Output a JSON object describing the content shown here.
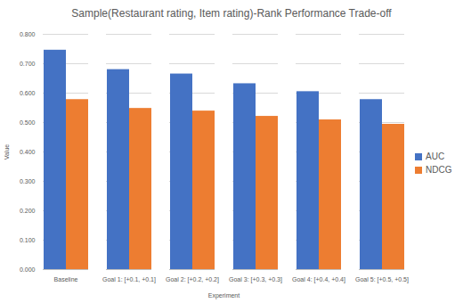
{
  "chart_data": {
    "type": "bar",
    "title": "Sample(Restaurant rating, Item rating)-Rank Performance Trade-off",
    "x_label": "Experiment",
    "y_label": "Value",
    "categories": [
      "Baseline",
      "Goal 1: [+0.1, +0.1]",
      "Goal 2: [+0.2, +0.2]",
      "Goal 3: [+0.3, +0.3]",
      "Goal 4: [+0.4, +0.4]",
      "Goal 5: [+0.5, +0.5]"
    ],
    "series": [
      {
        "name": "AUC",
        "color": "#4472c4",
        "values": [
          0.746,
          0.68,
          0.665,
          0.632,
          0.605,
          0.578
        ]
      },
      {
        "name": "NDCG",
        "color": "#ed7d31",
        "values": [
          0.578,
          0.548,
          0.539,
          0.521,
          0.509,
          0.494
        ]
      }
    ],
    "ylim": [
      0,
      0.8
    ],
    "yticks": [
      {
        "value": 0,
        "label": "0.000"
      },
      {
        "value": 0.1,
        "label": "0.100"
      },
      {
        "value": 0.2,
        "label": "0.200"
      },
      {
        "value": 0.3,
        "label": "0.300"
      },
      {
        "value": 0.4,
        "label": "0.400"
      },
      {
        "value": 0.5,
        "label": "0.500"
      },
      {
        "value": 0.6,
        "label": "0.600"
      },
      {
        "value": 0.7,
        "label": "0.700"
      },
      {
        "value": 0.8,
        "label": "0.800"
      }
    ],
    "grid": true,
    "legend": "right"
  }
}
